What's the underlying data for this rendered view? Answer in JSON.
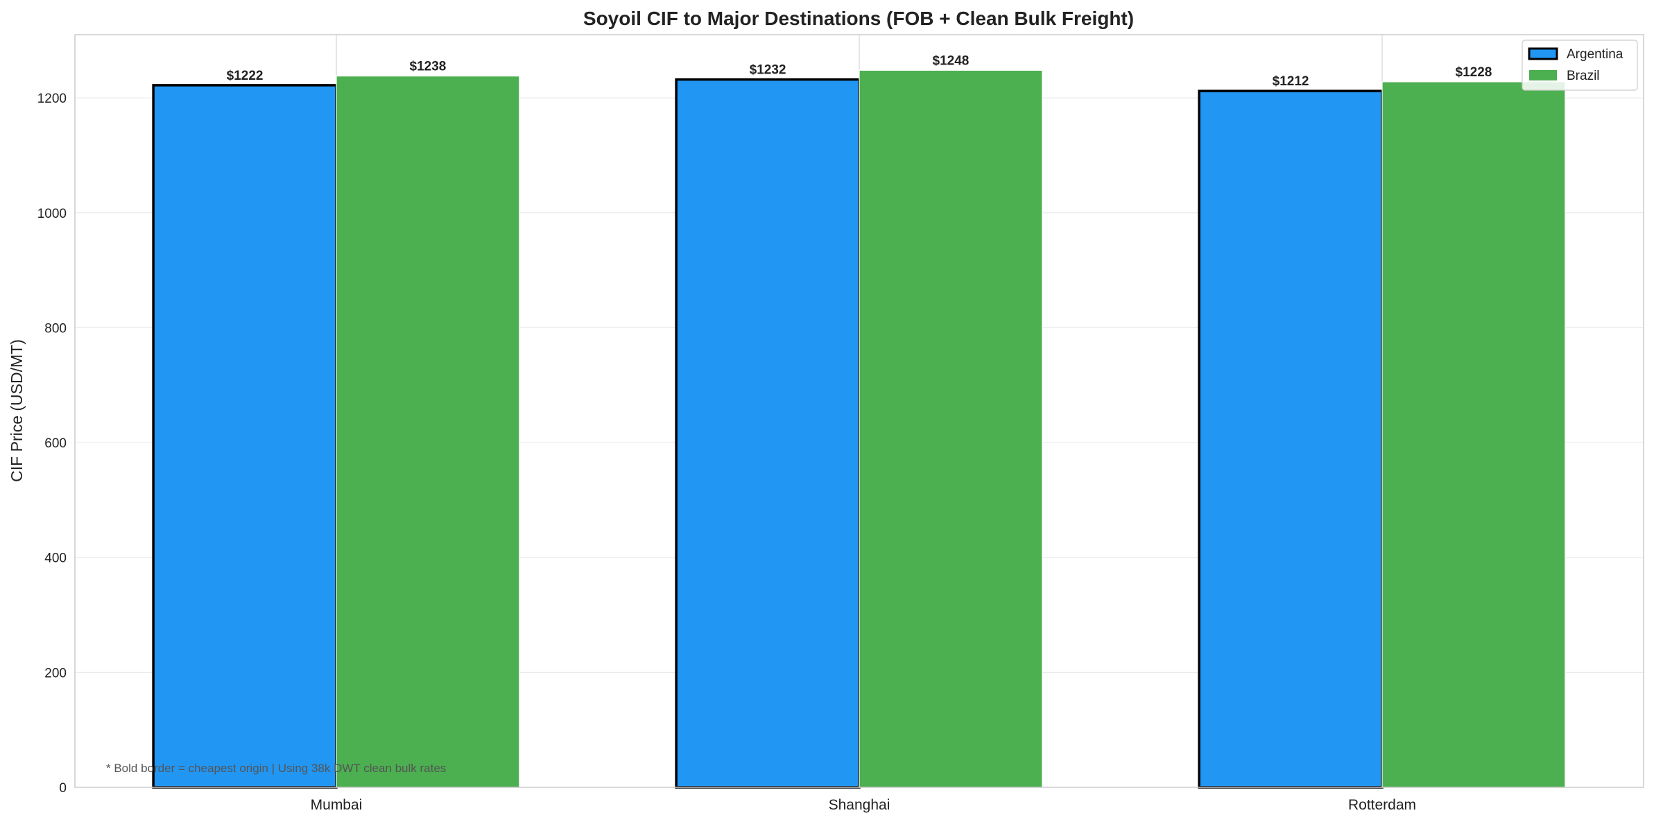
{
  "chart_data": {
    "type": "bar",
    "title": "Soyoil CIF to Major Destinations (FOB + Clean Bulk Freight)",
    "xlabel": "",
    "ylabel": "CIF Price (USD/MT)",
    "categories": [
      "Mumbai",
      "Shanghai",
      "Rotterdam"
    ],
    "series": [
      {
        "name": "Argentina",
        "values": [
          1222,
          1232,
          1212
        ],
        "color": "#2196F3",
        "bold_border": true,
        "labels": [
          "$1222",
          "$1232",
          "$1212"
        ]
      },
      {
        "name": "Brazil",
        "values": [
          1238,
          1248,
          1228
        ],
        "color": "#4CAF50",
        "bold_border": false,
        "labels": [
          "$1238",
          "$1248",
          "$1228"
        ]
      }
    ],
    "ylim": [
      0,
      1310
    ],
    "yticks": [
      0,
      200,
      400,
      600,
      800,
      1000,
      1200
    ],
    "ytick_labels": [
      "0",
      "200",
      "400",
      "600",
      "800",
      "1000",
      "1200"
    ],
    "grid": "horizontal",
    "legend_position": "top-right",
    "annotation": "* Bold border = cheapest origin | Using 38k DWT clean bulk rates"
  }
}
